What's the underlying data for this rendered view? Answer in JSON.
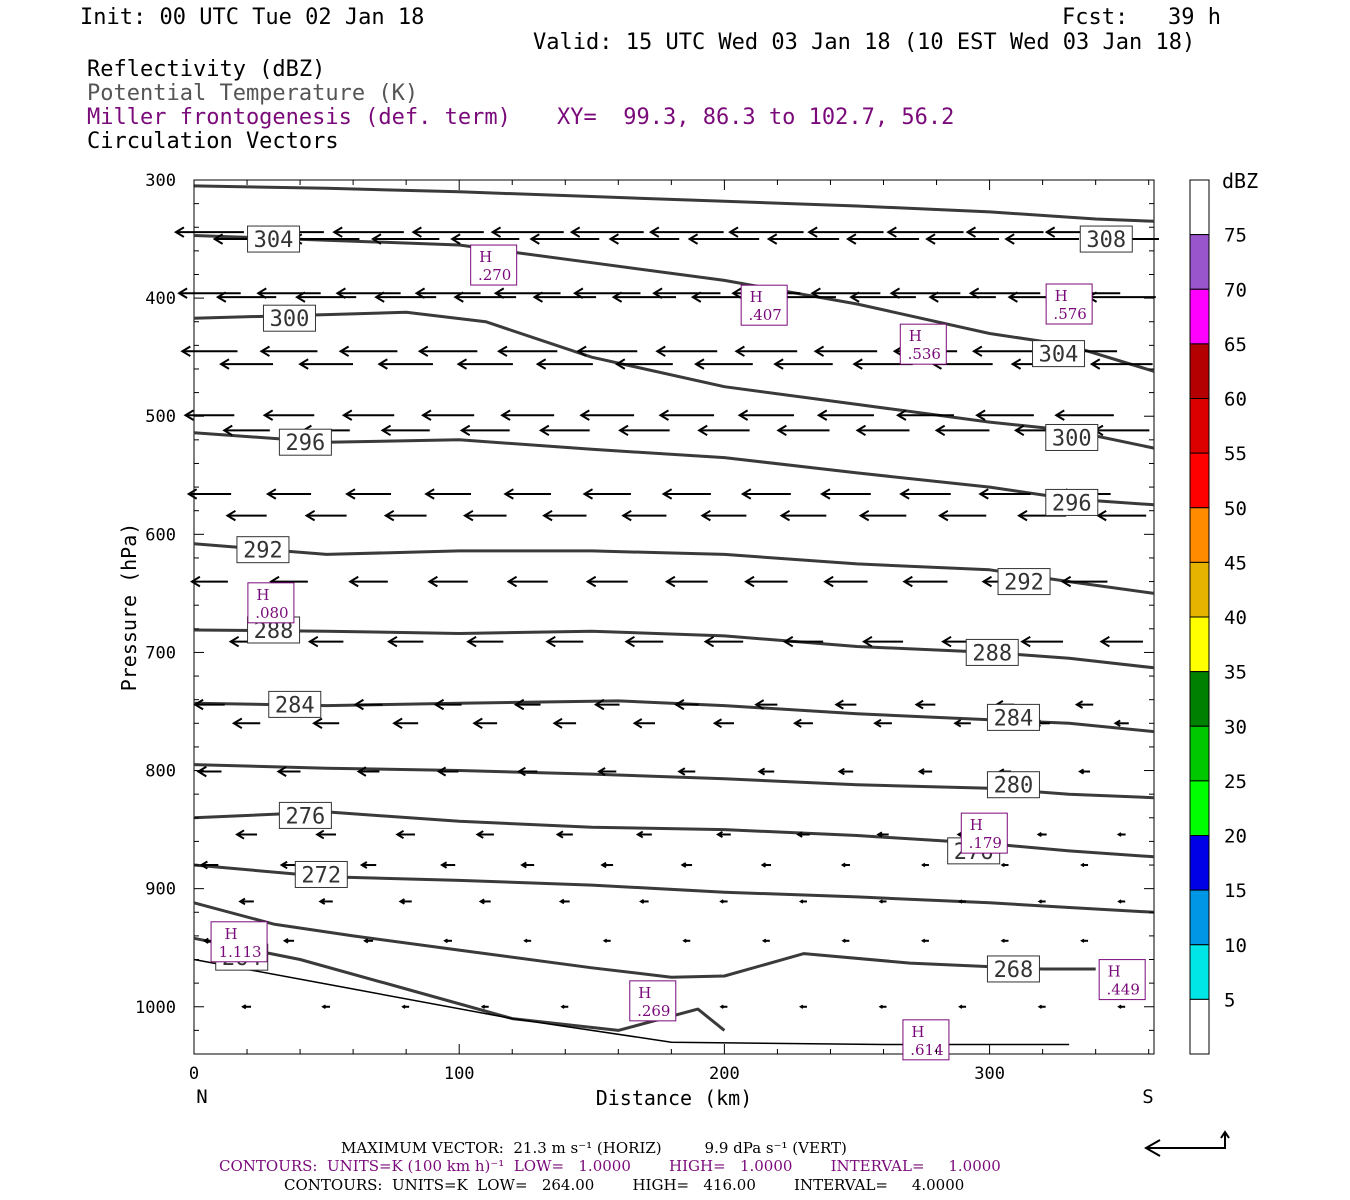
{
  "header": {
    "init": "Init: 00 UTC Tue 02 Jan 18",
    "fcst": "Fcst:   39 h",
    "valid": "Valid: 15 UTC Wed 03 Jan 18 (10 EST Wed 03 Jan 18)",
    "legend_lines": [
      {
        "text": "Reflectivity (dBZ)"
      },
      {
        "text": "Potential Temperature (K)"
      },
      {
        "text": "Miller frontogenesis (def. term)"
      },
      {
        "text": "Circulation Vectors"
      }
    ],
    "xy_label": "XY=  99.3, 86.3 to 102.7, 56.2"
  },
  "chart_data": {
    "type": "line",
    "xlabel": "Distance (km)",
    "ylabel": "Pressure (hPa)",
    "xlim": [
      0,
      362
    ],
    "ylim": [
      1040,
      300
    ],
    "x_ticks": [
      0,
      100,
      200,
      300
    ],
    "y_ticks": [
      300,
      400,
      500,
      600,
      700,
      800,
      900,
      1000
    ],
    "x_end_labels": {
      "left": "N",
      "right": "S"
    },
    "colorbar": {
      "label": "dBZ",
      "ticks": [
        5,
        10,
        15,
        20,
        25,
        30,
        35,
        40,
        45,
        50,
        55,
        60,
        65,
        70,
        75
      ],
      "colors": [
        "#00e5e5",
        "#0096e6",
        "#0000e6",
        "#00ff00",
        "#00c800",
        "#008000",
        "#ffff00",
        "#e6b400",
        "#ff8c00",
        "#ff0000",
        "#dd0000",
        "#b40000",
        "#ff00ff",
        "#9955cc"
      ]
    },
    "theta_contours": [
      {
        "level": "308",
        "points": [
          [
            0,
            305
          ],
          [
            50,
            307
          ],
          [
            100,
            310
          ],
          [
            150,
            314
          ],
          [
            200,
            318
          ],
          [
            250,
            322
          ],
          [
            300,
            327
          ],
          [
            340,
            333
          ],
          [
            362,
            335
          ]
        ]
      },
      {
        "level": "304",
        "points": [
          [
            0,
            347
          ],
          [
            50,
            351
          ],
          [
            100,
            355
          ],
          [
            150,
            370
          ],
          [
            200,
            385
          ],
          [
            250,
            405
          ],
          [
            300,
            430
          ],
          [
            330,
            440
          ],
          [
            362,
            462
          ]
        ]
      },
      {
        "level": "300",
        "points": [
          [
            0,
            417
          ],
          [
            50,
            414
          ],
          [
            80,
            412
          ],
          [
            110,
            420
          ],
          [
            150,
            450
          ],
          [
            200,
            475
          ],
          [
            250,
            490
          ],
          [
            300,
            505
          ],
          [
            330,
            512
          ],
          [
            362,
            527
          ]
        ]
      },
      {
        "level": "296",
        "points": [
          [
            0,
            514
          ],
          [
            50,
            522
          ],
          [
            100,
            520
          ],
          [
            150,
            528
          ],
          [
            200,
            535
          ],
          [
            250,
            548
          ],
          [
            300,
            560
          ],
          [
            330,
            570
          ],
          [
            362,
            575
          ]
        ]
      },
      {
        "level": "292",
        "points": [
          [
            0,
            608
          ],
          [
            50,
            617
          ],
          [
            100,
            614
          ],
          [
            150,
            614
          ],
          [
            200,
            617
          ],
          [
            250,
            625
          ],
          [
            300,
            630
          ],
          [
            330,
            640
          ],
          [
            362,
            650
          ]
        ]
      },
      {
        "level": "288",
        "points": [
          [
            0,
            681
          ],
          [
            50,
            682
          ],
          [
            100,
            684
          ],
          [
            150,
            682
          ],
          [
            200,
            686
          ],
          [
            250,
            695
          ],
          [
            300,
            700
          ],
          [
            330,
            705
          ],
          [
            362,
            713
          ]
        ]
      },
      {
        "level": "284",
        "points": [
          [
            0,
            743
          ],
          [
            50,
            745
          ],
          [
            100,
            743
          ],
          [
            160,
            741
          ],
          [
            200,
            745
          ],
          [
            250,
            752
          ],
          [
            300,
            757
          ],
          [
            330,
            760
          ],
          [
            362,
            767
          ]
        ]
      },
      {
        "level": "280",
        "points": [
          [
            0,
            795
          ],
          [
            50,
            798
          ],
          [
            100,
            800
          ],
          [
            150,
            803
          ],
          [
            200,
            807
          ],
          [
            250,
            812
          ],
          [
            300,
            815
          ],
          [
            330,
            820
          ],
          [
            362,
            823
          ]
        ]
      },
      {
        "level": "276",
        "points": [
          [
            0,
            840
          ],
          [
            50,
            835
          ],
          [
            100,
            843
          ],
          [
            150,
            848
          ],
          [
            200,
            850
          ],
          [
            250,
            855
          ],
          [
            300,
            862
          ],
          [
            330,
            868
          ],
          [
            362,
            873
          ]
        ]
      },
      {
        "level": "272",
        "points": [
          [
            0,
            880
          ],
          [
            50,
            890
          ],
          [
            100,
            893
          ],
          [
            150,
            897
          ],
          [
            200,
            903
          ],
          [
            250,
            907
          ],
          [
            300,
            912
          ],
          [
            330,
            916
          ],
          [
            362,
            920
          ]
        ]
      },
      {
        "level": "268",
        "points": [
          [
            0,
            912
          ],
          [
            30,
            930
          ],
          [
            60,
            940
          ],
          [
            100,
            952
          ],
          [
            150,
            967
          ],
          [
            180,
            975
          ],
          [
            200,
            974
          ],
          [
            230,
            955
          ],
          [
            270,
            963
          ],
          [
            320,
            968
          ],
          [
            340,
            968
          ]
        ]
      },
      {
        "level": "264",
        "points": [
          [
            0,
            942
          ],
          [
            40,
            960
          ],
          [
            80,
            985
          ],
          [
            120,
            1010
          ],
          [
            160,
            1020
          ],
          [
            190,
            1002
          ],
          [
            200,
            1020
          ]
        ]
      }
    ],
    "theta_labels": [
      {
        "text": "304",
        "x": 30,
        "y": 350
      },
      {
        "text": "308",
        "x": 344,
        "y": 350
      },
      {
        "text": "300",
        "x": 36,
        "y": 417
      },
      {
        "text": "304",
        "x": 326,
        "y": 447
      },
      {
        "text": "296",
        "x": 42,
        "y": 522
      },
      {
        "text": "300",
        "x": 331,
        "y": 518
      },
      {
        "text": "296",
        "x": 331,
        "y": 573
      },
      {
        "text": "292",
        "x": 26,
        "y": 613
      },
      {
        "text": "292",
        "x": 313,
        "y": 640
      },
      {
        "text": "288",
        "x": 30,
        "y": 681
      },
      {
        "text": "288",
        "x": 301,
        "y": 700
      },
      {
        "text": "284",
        "x": 38,
        "y": 744
      },
      {
        "text": "284",
        "x": 309,
        "y": 755
      },
      {
        "text": "280",
        "x": 309,
        "y": 812
      },
      {
        "text": "276",
        "x": 42,
        "y": 838
      },
      {
        "text": "276",
        "x": 294,
        "y": 868
      },
      {
        "text": "272",
        "x": 48,
        "y": 888
      },
      {
        "text": "264",
        "x": 18,
        "y": 958
      },
      {
        "text": "268",
        "x": 309,
        "y": 968
      }
    ],
    "frontogenesis_maxima": [
      {
        "label": "H",
        "value": ".270",
        "x": 113,
        "y": 372
      },
      {
        "label": "H",
        "value": ".407",
        "x": 215,
        "y": 406
      },
      {
        "label": "H",
        "value": ".576",
        "x": 330,
        "y": 405
      },
      {
        "label": "H",
        "value": ".536",
        "x": 275,
        "y": 439
      },
      {
        "label": "H",
        "value": ".080",
        "x": 29,
        "y": 658
      },
      {
        "label": "H",
        "value": ".179",
        "x": 298,
        "y": 853
      },
      {
        "label": "H",
        "value": "1.113",
        "x": 17,
        "y": 945
      },
      {
        "label": "H",
        "value": ".269",
        "x": 173,
        "y": 995
      },
      {
        "label": "H",
        "value": ".449",
        "x": 350,
        "y": 977
      },
      {
        "label": "H",
        "value": ".614",
        "x": 276,
        "y": 1028
      }
    ],
    "vector_rows_hpa": [
      345,
      350,
      395,
      400,
      445,
      455,
      500,
      512,
      565,
      585,
      640,
      690,
      745,
      760,
      800,
      855,
      880,
      910,
      945,
      1000
    ]
  },
  "footer": {
    "max_vector": "MAXIMUM VECTOR:  21.3 m s⁻¹ (HORIZ)         9.9 dPa s⁻¹ (VERT)",
    "contours_1": "CONTOURS:  UNITS=K (100 km h)⁻¹  LOW=   1.0000        HIGH=   1.0000        INTERVAL=     1.0000",
    "contours_2": "CONTOURS:  UNITS=K  LOW=   264.00        HIGH=   416.00        INTERVAL=     4.0000"
  }
}
